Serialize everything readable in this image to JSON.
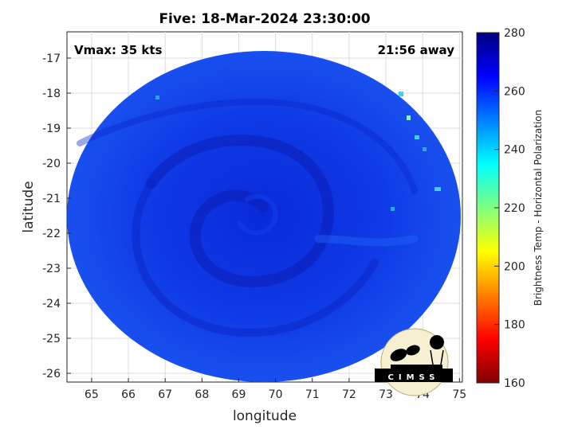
{
  "chart_data": {
    "type": "heatmap",
    "title": "Five: 18-Mar-2024 23:30:00",
    "xlabel": "longitude",
    "ylabel": "latitude",
    "xlim": [
      64.33,
      75.08
    ],
    "ylim": [
      -26.25,
      -16.25
    ],
    "xticks": [
      65,
      66,
      67,
      68,
      69,
      70,
      71,
      72,
      73,
      74,
      75
    ],
    "yticks": [
      -17,
      -18,
      -19,
      -20,
      -21,
      -22,
      -23,
      -24,
      -25,
      -26
    ],
    "grid": true,
    "annotations": {
      "left": "Vmax: 35 kts",
      "right": "21:56 away"
    },
    "colorbar": {
      "label": "Brightness Temp - Horizontal Polarization",
      "range": [
        160,
        280
      ],
      "ticks": [
        160,
        180,
        200,
        220,
        240,
        260,
        280
      ],
      "colormap": "jet",
      "placement": "right"
    },
    "swath": {
      "center_lon": 69.35,
      "center_lat": -21.3,
      "dominant_value_range": [
        255,
        270
      ],
      "vortex_center_lon": 69.3,
      "vortex_center_lat": -21.3
    }
  },
  "logo": {
    "text": "CIMSS"
  }
}
